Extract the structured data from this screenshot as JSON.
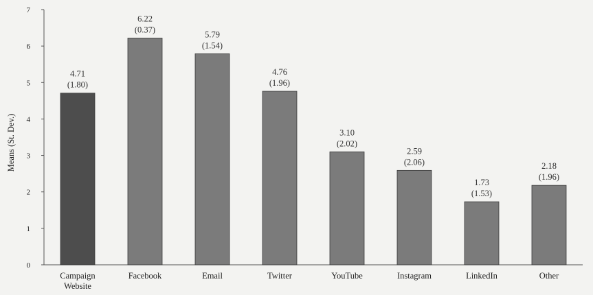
{
  "chart_data": {
    "type": "bar",
    "title": "",
    "xlabel": "",
    "ylabel": "Means (St. Dev.)",
    "ylim": [
      0,
      7
    ],
    "yticks": [
      0,
      1,
      2,
      3,
      4,
      5,
      6,
      7
    ],
    "grid": false,
    "categories": [
      [
        "Campaign",
        "Website"
      ],
      [
        "Facebook"
      ],
      [
        "Email"
      ],
      [
        "Twitter"
      ],
      [
        "YouTube"
      ],
      [
        "Instagram"
      ],
      [
        "LinkedIn"
      ],
      [
        "Other"
      ]
    ],
    "values": [
      4.71,
      6.22,
      5.79,
      4.76,
      3.1,
      2.59,
      1.73,
      2.18
    ],
    "value_labels": [
      "4.71",
      "6.22",
      "5.79",
      "4.76",
      "3.10",
      "2.59",
      "1.73",
      "2.18"
    ],
    "sd_labels": [
      "(1.80)",
      "(0.37)",
      "(1.54)",
      "(1.96)",
      "(2.02)",
      "(2.06)",
      "(1.53)",
      "(1.96)"
    ],
    "colors": {
      "highlight_bar": "#4d4d4d",
      "bar": "#7b7b7b",
      "axis": "#555555"
    }
  }
}
